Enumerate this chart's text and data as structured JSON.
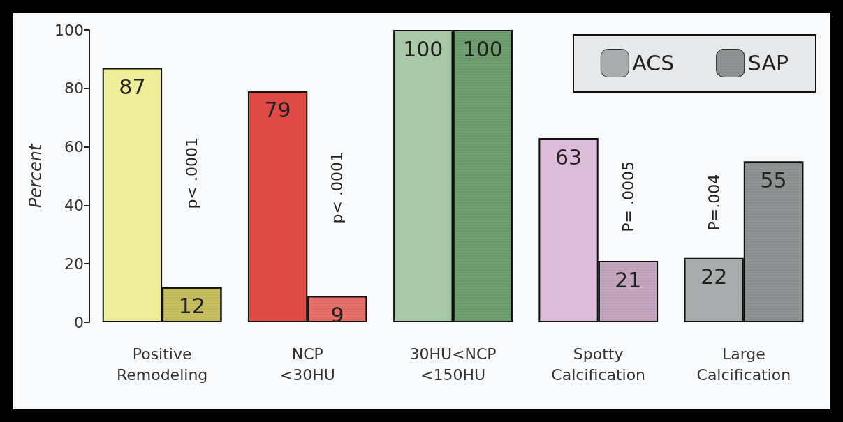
{
  "chart_data": {
    "type": "bar",
    "ylabel": "Percent",
    "categories": [
      "Positive Remodeling",
      "NCP <30HU",
      "30HU<NCP <150HU",
      "Spotty Calcification",
      "Large Calcification"
    ],
    "series": [
      {
        "name": "ACS",
        "color": "#a8acac",
        "colors": [
          "#eeee99",
          "#e04a45",
          "#a8c8a8",
          "#dcbcd8",
          "#a8acac"
        ],
        "values": [
          87,
          79,
          100,
          63,
          22
        ]
      },
      {
        "name": "SAP",
        "color": "#909494",
        "colors": [
          "#c8c060",
          "#e8706a",
          "#70a070",
          "#c8a8c0",
          "#909494"
        ],
        "values": [
          12,
          9,
          100,
          21,
          55
        ]
      }
    ],
    "ylim": [
      0,
      100
    ],
    "yticks": [
      0,
      20,
      40,
      60,
      80,
      100
    ],
    "grid": false,
    "legend": "top right",
    "data_labels": true,
    "annotations": [
      {
        "text": "p< .0001",
        "x": "Positive Remodeling",
        "y": 51
      },
      {
        "text": "p< .0001",
        "x": "NCP <30HU",
        "y": 46
      },
      {
        "text": "P= .0005",
        "x": "Spotty Calcification",
        "y": 43
      },
      {
        "text": "P=.004",
        "x": "Large Calcification",
        "y": 41
      }
    ]
  }
}
